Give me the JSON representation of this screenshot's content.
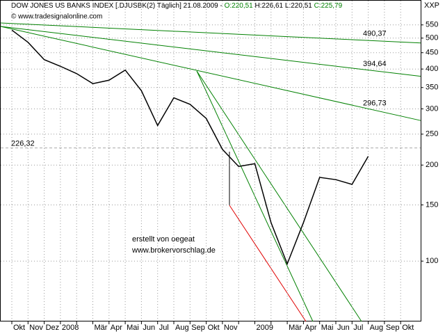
{
  "chart_data": {
    "type": "line",
    "header": [
      {
        "text": "DOW JONES US BANKS INDEX [.DJUSBK(2)  Täglich] 21.08.2009 - ",
        "color": "#000000"
      },
      {
        "text": "O:220,51",
        "color": "#008000"
      },
      {
        "text": " H:226,61 L:220,51 ",
        "color": "#000000"
      },
      {
        "text": "C:225,79",
        "color": "#008000"
      }
    ],
    "source": "© www.tradesignalonline.com",
    "axis_name": "XXP",
    "annotation": [
      "erstellt von oegeat",
      "www.brokervorschlag.de"
    ],
    "categories": [
      "Okt",
      "Nov",
      "Dez",
      "2008",
      null,
      "Mär",
      "Apr",
      "Mai",
      "Jun",
      "Jul",
      "Aug",
      "Sep",
      "Okt",
      "Nov",
      null,
      "2009",
      null,
      "Mär",
      "Apr",
      "Mai",
      "Jun",
      "Jul",
      "Aug",
      "Sep",
      "Okt"
    ],
    "series": [
      {
        "name": "DJUSBK",
        "color": "#000000",
        "values": [
          530,
          485,
          428,
          408,
          387,
          360,
          369,
          397,
          342,
          266,
          325,
          310,
          280,
          224,
          198,
          202,
          132,
          98,
          132,
          183,
          180,
          174,
          213,
          null,
          null
        ]
      }
    ],
    "ylim": [
      65,
      655
    ],
    "log_scale": true,
    "yticks": [
      100,
      150,
      200,
      250,
      300,
      350,
      400,
      450,
      500,
      550
    ],
    "grid": true,
    "level": {
      "value": 226.32,
      "label": "226,32"
    },
    "trendlines": [
      {
        "value": 490.37,
        "label": "490,37",
        "color": "#008000"
      },
      {
        "value": 394.64,
        "label": "394,64",
        "color": "#008000"
      },
      {
        "value": 296.73,
        "label": "296,73",
        "color": "#008000"
      }
    ]
  }
}
